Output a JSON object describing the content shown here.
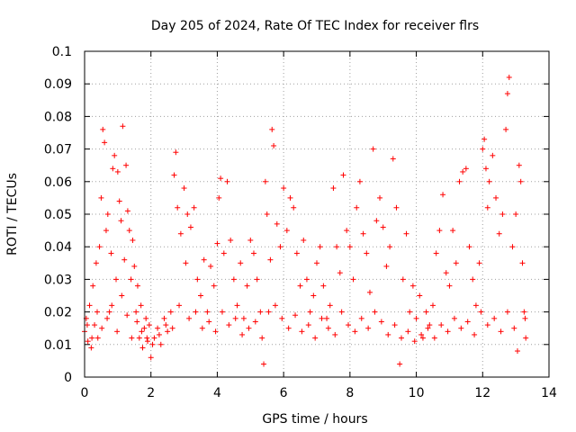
{
  "chart_data": {
    "type": "scatter",
    "title": "Day 205 of 2024, Rate Of TEC Index for receiver flrs",
    "xlabel": "GPS time / hours",
    "ylabel": "ROTI / TECUs",
    "xlim": [
      0,
      14
    ],
    "ylim": [
      0,
      0.1
    ],
    "x_ticks": [
      0,
      2,
      4,
      6,
      8,
      10,
      12,
      14
    ],
    "x_tick_labels": [
      "0",
      "2",
      "4",
      "6",
      "8",
      "10",
      "12",
      "14"
    ],
    "y_ticks": [
      0,
      0.01,
      0.02,
      0.03,
      0.04,
      0.05,
      0.06,
      0.07,
      0.08,
      0.09,
      0.1
    ],
    "y_tick_labels": [
      "0",
      "0.01",
      "0.02",
      "0.03",
      "0.04",
      "0.05",
      "0.06",
      "0.07",
      "0.08",
      "0.09",
      "0.1"
    ],
    "grid": true,
    "marker": "+",
    "color": "#ff0000",
    "series": [
      {
        "name": "ROTI",
        "points": [
          [
            0.0,
            0.014
          ],
          [
            0.05,
            0.018
          ],
          [
            0.1,
            0.011
          ],
          [
            0.15,
            0.022
          ],
          [
            0.2,
            0.009
          ],
          [
            0.25,
            0.028
          ],
          [
            0.3,
            0.016
          ],
          [
            0.35,
            0.035
          ],
          [
            0.4,
            0.012
          ],
          [
            0.45,
            0.04
          ],
          [
            0.5,
            0.055
          ],
          [
            0.55,
            0.076
          ],
          [
            0.6,
            0.072
          ],
          [
            0.65,
            0.045
          ],
          [
            0.7,
            0.05
          ],
          [
            0.75,
            0.02
          ],
          [
            0.8,
            0.038
          ],
          [
            0.85,
            0.064
          ],
          [
            0.9,
            0.068
          ],
          [
            0.95,
            0.03
          ],
          [
            1.0,
            0.063
          ],
          [
            1.05,
            0.054
          ],
          [
            1.1,
            0.048
          ],
          [
            1.15,
            0.077
          ],
          [
            1.2,
            0.036
          ],
          [
            1.25,
            0.065
          ],
          [
            1.3,
            0.051
          ],
          [
            1.35,
            0.045
          ],
          [
            1.4,
            0.03
          ],
          [
            1.45,
            0.042
          ],
          [
            1.5,
            0.034
          ],
          [
            1.55,
            0.02
          ],
          [
            1.6,
            0.028
          ],
          [
            1.65,
            0.012
          ],
          [
            1.7,
            0.022
          ],
          [
            1.75,
            0.009
          ],
          [
            1.8,
            0.015
          ],
          [
            1.85,
            0.018
          ],
          [
            1.9,
            0.011
          ],
          [
            1.95,
            0.016
          ],
          [
            2.0,
            0.006
          ],
          [
            2.1,
            0.012
          ],
          [
            2.2,
            0.015
          ],
          [
            2.3,
            0.01
          ],
          [
            2.4,
            0.018
          ],
          [
            2.5,
            0.014
          ],
          [
            2.6,
            0.02
          ],
          [
            2.7,
            0.062
          ],
          [
            2.75,
            0.069
          ],
          [
            2.8,
            0.052
          ],
          [
            2.9,
            0.044
          ],
          [
            3.0,
            0.058
          ],
          [
            3.05,
            0.035
          ],
          [
            3.1,
            0.05
          ],
          [
            3.2,
            0.046
          ],
          [
            3.3,
            0.052
          ],
          [
            3.4,
            0.03
          ],
          [
            3.5,
            0.025
          ],
          [
            3.6,
            0.036
          ],
          [
            3.7,
            0.02
          ],
          [
            3.8,
            0.034
          ],
          [
            3.9,
            0.028
          ],
          [
            4.0,
            0.041
          ],
          [
            4.05,
            0.055
          ],
          [
            4.1,
            0.061
          ],
          [
            4.2,
            0.038
          ],
          [
            4.3,
            0.06
          ],
          [
            4.4,
            0.042
          ],
          [
            4.5,
            0.03
          ],
          [
            4.6,
            0.022
          ],
          [
            4.7,
            0.035
          ],
          [
            4.8,
            0.018
          ],
          [
            4.9,
            0.028
          ],
          [
            5.0,
            0.042
          ],
          [
            5.1,
            0.038
          ],
          [
            5.2,
            0.03
          ],
          [
            5.3,
            0.02
          ],
          [
            5.4,
            0.004
          ],
          [
            5.45,
            0.06
          ],
          [
            5.5,
            0.05
          ],
          [
            5.6,
            0.036
          ],
          [
            5.65,
            0.076
          ],
          [
            5.7,
            0.071
          ],
          [
            5.8,
            0.047
          ],
          [
            5.9,
            0.04
          ],
          [
            6.0,
            0.058
          ],
          [
            6.1,
            0.045
          ],
          [
            6.2,
            0.055
          ],
          [
            6.3,
            0.052
          ],
          [
            6.4,
            0.038
          ],
          [
            6.5,
            0.028
          ],
          [
            6.6,
            0.042
          ],
          [
            6.7,
            0.03
          ],
          [
            6.8,
            0.02
          ],
          [
            6.9,
            0.025
          ],
          [
            7.0,
            0.035
          ],
          [
            7.1,
            0.04
          ],
          [
            7.2,
            0.028
          ],
          [
            7.3,
            0.018
          ],
          [
            7.4,
            0.022
          ],
          [
            7.5,
            0.058
          ],
          [
            7.6,
            0.04
          ],
          [
            7.7,
            0.032
          ],
          [
            7.8,
            0.062
          ],
          [
            7.9,
            0.045
          ],
          [
            8.0,
            0.04
          ],
          [
            8.1,
            0.03
          ],
          [
            8.2,
            0.052
          ],
          [
            8.3,
            0.06
          ],
          [
            8.4,
            0.044
          ],
          [
            8.5,
            0.038
          ],
          [
            8.6,
            0.026
          ],
          [
            8.7,
            0.07
          ],
          [
            8.8,
            0.048
          ],
          [
            8.9,
            0.055
          ],
          [
            9.0,
            0.046
          ],
          [
            9.1,
            0.034
          ],
          [
            9.2,
            0.04
          ],
          [
            9.3,
            0.067
          ],
          [
            9.4,
            0.052
          ],
          [
            9.5,
            0.004
          ],
          [
            9.6,
            0.03
          ],
          [
            9.7,
            0.044
          ],
          [
            9.8,
            0.02
          ],
          [
            9.9,
            0.028
          ],
          [
            10.0,
            0.018
          ],
          [
            10.1,
            0.025
          ],
          [
            10.2,
            0.012
          ],
          [
            10.3,
            0.02
          ],
          [
            10.4,
            0.016
          ],
          [
            10.5,
            0.022
          ],
          [
            10.6,
            0.038
          ],
          [
            10.7,
            0.045
          ],
          [
            10.8,
            0.056
          ],
          [
            10.9,
            0.032
          ],
          [
            11.0,
            0.028
          ],
          [
            11.1,
            0.045
          ],
          [
            11.2,
            0.035
          ],
          [
            11.3,
            0.06
          ],
          [
            11.4,
            0.063
          ],
          [
            11.5,
            0.064
          ],
          [
            11.6,
            0.04
          ],
          [
            11.7,
            0.03
          ],
          [
            11.8,
            0.022
          ],
          [
            11.9,
            0.035
          ],
          [
            12.0,
            0.07
          ],
          [
            12.05,
            0.073
          ],
          [
            12.1,
            0.064
          ],
          [
            12.15,
            0.052
          ],
          [
            12.2,
            0.06
          ],
          [
            12.3,
            0.068
          ],
          [
            12.4,
            0.055
          ],
          [
            12.5,
            0.044
          ],
          [
            12.6,
            0.05
          ],
          [
            12.7,
            0.076
          ],
          [
            12.75,
            0.087
          ],
          [
            12.8,
            0.092
          ],
          [
            12.9,
            0.04
          ],
          [
            13.0,
            0.05
          ],
          [
            13.1,
            0.065
          ],
          [
            13.15,
            0.06
          ],
          [
            13.2,
            0.035
          ],
          [
            13.25,
            0.02
          ],
          [
            13.3,
            0.012
          ],
          [
            0.08,
            0.016
          ],
          [
            0.22,
            0.012
          ],
          [
            0.38,
            0.02
          ],
          [
            0.52,
            0.015
          ],
          [
            0.68,
            0.018
          ],
          [
            0.82,
            0.022
          ],
          [
            0.98,
            0.014
          ],
          [
            1.12,
            0.025
          ],
          [
            1.28,
            0.019
          ],
          [
            1.42,
            0.012
          ],
          [
            1.58,
            0.017
          ],
          [
            1.72,
            0.014
          ],
          [
            1.88,
            0.012
          ],
          [
            2.05,
            0.01
          ],
          [
            2.25,
            0.013
          ],
          [
            2.45,
            0.016
          ],
          [
            2.65,
            0.015
          ],
          [
            2.85,
            0.022
          ],
          [
            3.15,
            0.018
          ],
          [
            3.35,
            0.02
          ],
          [
            3.55,
            0.015
          ],
          [
            3.75,
            0.017
          ],
          [
            3.95,
            0.014
          ],
          [
            4.15,
            0.02
          ],
          [
            4.35,
            0.016
          ],
          [
            4.55,
            0.018
          ],
          [
            4.75,
            0.013
          ],
          [
            4.95,
            0.015
          ],
          [
            5.15,
            0.017
          ],
          [
            5.35,
            0.012
          ],
          [
            5.55,
            0.02
          ],
          [
            5.75,
            0.022
          ],
          [
            5.95,
            0.018
          ],
          [
            6.15,
            0.015
          ],
          [
            6.35,
            0.019
          ],
          [
            6.55,
            0.014
          ],
          [
            6.75,
            0.016
          ],
          [
            6.95,
            0.012
          ],
          [
            7.15,
            0.018
          ],
          [
            7.35,
            0.015
          ],
          [
            7.55,
            0.013
          ],
          [
            7.75,
            0.02
          ],
          [
            7.95,
            0.016
          ],
          [
            8.15,
            0.014
          ],
          [
            8.35,
            0.018
          ],
          [
            8.55,
            0.015
          ],
          [
            8.75,
            0.02
          ],
          [
            8.95,
            0.017
          ],
          [
            9.15,
            0.013
          ],
          [
            9.35,
            0.016
          ],
          [
            9.55,
            0.012
          ],
          [
            9.75,
            0.014
          ],
          [
            9.95,
            0.011
          ],
          [
            10.15,
            0.013
          ],
          [
            10.35,
            0.015
          ],
          [
            10.55,
            0.012
          ],
          [
            10.75,
            0.016
          ],
          [
            10.95,
            0.014
          ],
          [
            11.15,
            0.018
          ],
          [
            11.35,
            0.015
          ],
          [
            11.55,
            0.017
          ],
          [
            11.75,
            0.013
          ],
          [
            11.95,
            0.02
          ],
          [
            12.15,
            0.016
          ],
          [
            12.35,
            0.018
          ],
          [
            12.55,
            0.014
          ],
          [
            12.75,
            0.02
          ],
          [
            12.95,
            0.015
          ],
          [
            13.05,
            0.008
          ],
          [
            13.28,
            0.018
          ]
        ]
      }
    ]
  }
}
